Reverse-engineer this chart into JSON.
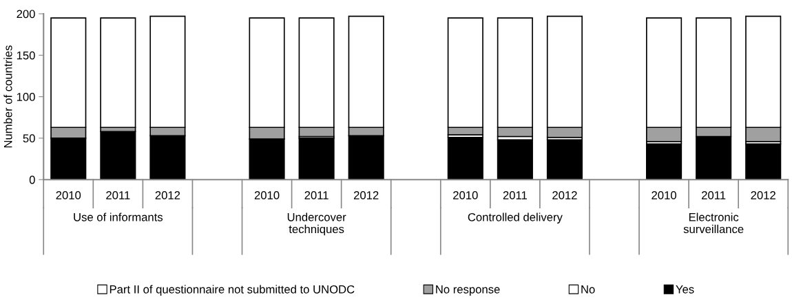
{
  "chart_data": {
    "type": "bar",
    "stacked": true,
    "ylabel": "Number of countries",
    "categories": [
      "2010",
      "2011",
      "2012",
      null,
      "2010",
      "2011",
      "2012",
      null,
      "2010",
      "2011",
      "2012",
      null,
      "2010",
      "2011",
      "2012"
    ],
    "annotations": [
      "Use of informants",
      "Undercover techniques",
      "Controlled delivery",
      "Electronic surveillance"
    ],
    "series": [
      {
        "name": "Yes",
        "color": "#000000",
        "values": [
          50,
          58,
          53,
          null,
          49,
          50,
          53,
          null,
          51,
          48,
          48,
          null,
          43,
          52,
          43
        ]
      },
      {
        "name": "No",
        "color": "#ffffff",
        "values": [
          0,
          0,
          0,
          null,
          0,
          2,
          0,
          null,
          3,
          4,
          3,
          null,
          3,
          0,
          3
        ]
      },
      {
        "name": "No response",
        "color": "#a0a0a0",
        "values": [
          13,
          5,
          10,
          null,
          14,
          11,
          10,
          null,
          9,
          11,
          12,
          null,
          17,
          11,
          17
        ]
      },
      {
        "name": "Part II of questionnaire not submitted to UNODC",
        "color": "#ffffff",
        "values": [
          132,
          132,
          134,
          null,
          132,
          132,
          134,
          null,
          132,
          132,
          134,
          null,
          132,
          132,
          134
        ]
      }
    ],
    "ylim": [
      0,
      200
    ],
    "yticks": [
      0,
      50,
      100,
      150,
      200
    ],
    "grid": false,
    "legend": "bottom"
  }
}
